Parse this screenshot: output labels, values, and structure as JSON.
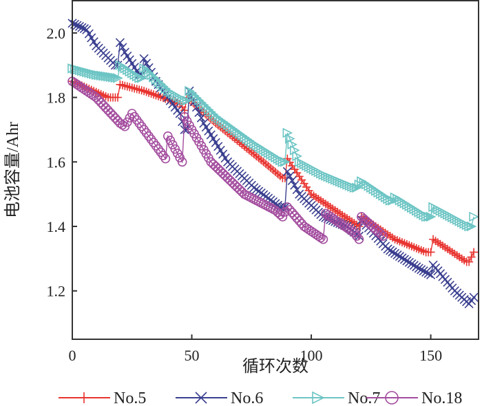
{
  "chart_data": {
    "type": "line",
    "title": "",
    "xlabel": "循环次数",
    "ylabel": "电池容量/Ahr",
    "xlim": [
      0,
      170
    ],
    "ylim": [
      1.05,
      2.1
    ],
    "xticks": [
      "0",
      "50",
      "100",
      "150"
    ],
    "xtick_values": [
      0,
      50,
      100,
      150
    ],
    "yticks": [
      "1.2",
      "1.4",
      "1.6",
      "1.8",
      "2.0"
    ],
    "ytick_values": [
      1.2,
      1.4,
      1.6,
      1.8,
      2.0
    ],
    "legend_position": "bottom",
    "series": [
      {
        "name": "No.5",
        "color": "#e8332f",
        "marker": "plus",
        "x": [
          0,
          15,
          19,
          20,
          30,
          45,
          47,
          48,
          60,
          80,
          88,
          89,
          90,
          100,
          110,
          120,
          121,
          135,
          148,
          150,
          151,
          165,
          166,
          168
        ],
        "y": [
          1.85,
          1.8,
          1.8,
          1.84,
          1.82,
          1.78,
          1.76,
          1.8,
          1.72,
          1.6,
          1.55,
          1.55,
          1.61,
          1.5,
          1.45,
          1.4,
          1.43,
          1.36,
          1.32,
          1.32,
          1.36,
          1.29,
          1.29,
          1.32
        ]
      },
      {
        "name": "No.6",
        "color": "#3a3f8f",
        "marker": "x",
        "x": [
          0,
          6,
          10,
          18,
          19,
          20,
          22,
          28,
          29,
          30,
          35,
          45,
          47,
          48,
          49,
          55,
          65,
          76,
          87,
          89,
          90,
          95,
          105,
          115,
          120,
          121,
          132,
          145,
          150,
          151,
          160,
          166,
          168
        ],
        "y": [
          2.03,
          2.01,
          1.96,
          1.9,
          1.9,
          1.97,
          1.94,
          1.87,
          1.87,
          1.92,
          1.85,
          1.75,
          1.7,
          1.7,
          1.82,
          1.72,
          1.6,
          1.52,
          1.46,
          1.46,
          1.57,
          1.5,
          1.43,
          1.4,
          1.37,
          1.42,
          1.33,
          1.27,
          1.25,
          1.28,
          1.2,
          1.16,
          1.18
        ]
      },
      {
        "name": "No.7",
        "color": "#6cc5c4",
        "marker": "triangle-right",
        "x": [
          0,
          10,
          19,
          20,
          28,
          29,
          30,
          40,
          47,
          48,
          49,
          60,
          75,
          88,
          89,
          90,
          95,
          105,
          118,
          119,
          121,
          133,
          134,
          135,
          148,
          150,
          151,
          166,
          167,
          168
        ],
        "y": [
          1.89,
          1.87,
          1.86,
          1.9,
          1.86,
          1.86,
          1.89,
          1.82,
          1.79,
          1.79,
          1.82,
          1.74,
          1.66,
          1.6,
          1.6,
          1.69,
          1.6,
          1.56,
          1.52,
          1.52,
          1.54,
          1.48,
          1.48,
          1.49,
          1.43,
          1.43,
          1.46,
          1.4,
          1.4,
          1.43
        ]
      },
      {
        "name": "No.18",
        "color": "#a34c9e",
        "marker": "circle",
        "x": [
          0,
          10,
          20,
          22,
          25,
          32,
          39,
          40,
          46,
          47,
          50,
          58,
          72,
          85,
          88,
          90,
          97,
          105,
          106,
          118,
          120,
          121,
          130
        ],
        "y": [
          1.85,
          1.8,
          1.72,
          1.71,
          1.75,
          1.68,
          1.61,
          1.68,
          1.6,
          1.74,
          1.7,
          1.6,
          1.5,
          1.45,
          1.43,
          1.46,
          1.4,
          1.36,
          1.44,
          1.38,
          1.36,
          1.43,
          1.37
        ]
      }
    ]
  }
}
